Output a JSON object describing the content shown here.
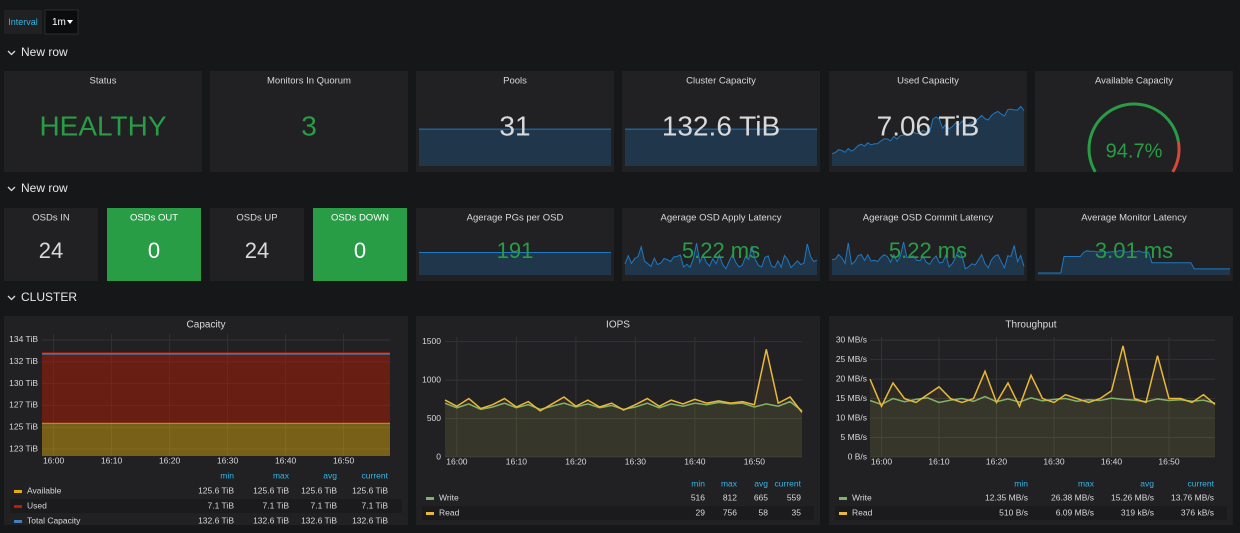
{
  "toolbar": {
    "interval_label": "Interval",
    "interval_value": "1m"
  },
  "rows": [
    "New row",
    "New row",
    "CLUSTER"
  ],
  "stats": [
    {
      "title": "Status",
      "value": "HEALTHY",
      "color": "#299c46"
    },
    {
      "title": "Monitors In Quorum",
      "value": "3",
      "color": "#299c46"
    },
    {
      "title": "Pools",
      "value": "31",
      "color": "#d8d9da"
    },
    {
      "title": "Cluster Capacity",
      "value": "132.6 TiB",
      "color": "#d8d9da"
    },
    {
      "title": "Used Capacity",
      "value": "7.06 TiB",
      "color": "#d8d9da"
    },
    {
      "title": "Available Capacity",
      "value": "94.7%",
      "color": "#299c46"
    },
    {
      "title": "OSDs IN",
      "value": "24",
      "color": "#d8d9da"
    },
    {
      "title": "OSDs OUT",
      "value": "0",
      "color": "#ffffff",
      "background": "#299c46"
    },
    {
      "title": "OSDs UP",
      "value": "24",
      "color": "#d8d9da"
    },
    {
      "title": "OSDs DOWN",
      "value": "0",
      "color": "#ffffff",
      "background": "#299c46"
    },
    {
      "title": "Agerage PGs per OSD",
      "value": "191",
      "color": "#299c46"
    },
    {
      "title": "Agerage OSD Apply Latency",
      "value": "5.22 ms",
      "color": "#299c46"
    },
    {
      "title": "Agerage OSD Commit Latency",
      "value": "5.22 ms",
      "color": "#299c46"
    },
    {
      "title": "Average Monitor Latency",
      "value": "3.01 ms",
      "color": "#299c46"
    }
  ],
  "chart_data": [
    {
      "type": "area",
      "title": "Capacity",
      "categories": [
        null,
        "16:00",
        null,
        null,
        null,
        null,
        "16:10",
        null,
        null,
        null,
        null,
        "16:20",
        null,
        null,
        null,
        null,
        "16:30",
        null,
        null,
        null,
        null,
        "16:40",
        null,
        null,
        null,
        null,
        "16:50",
        null,
        null,
        null,
        null
      ],
      "ylim": [
        122.3,
        134.6
      ],
      "yticks": [
        {
          "value": 123.0,
          "label": "123 TiB"
        },
        {
          "value": 125.2,
          "label": "125 TiB"
        },
        {
          "value": 127.4,
          "label": "127 TiB"
        },
        {
          "value": 129.6,
          "label": "130 TiB"
        },
        {
          "value": 131.8,
          "label": "132 TiB"
        },
        {
          "value": 134.0,
          "label": "134 TiB"
        }
      ],
      "grid": true,
      "legend_columns": [
        "min",
        "max",
        "avg",
        "current"
      ],
      "series": [
        {
          "name": "Available",
          "color": "#e5ac0e",
          "stack": true,
          "values": [
            125.6,
            125.6,
            125.6,
            125.6,
            125.6,
            125.6,
            125.6,
            125.6,
            125.6,
            125.6,
            125.6,
            125.6,
            125.6,
            125.6,
            125.6,
            125.6,
            125.6,
            125.6,
            125.6,
            125.6,
            125.6,
            125.6,
            125.6,
            125.6,
            125.6,
            125.6,
            125.6,
            125.6,
            125.6,
            125.6,
            125.6
          ],
          "legend": [
            "125.6 TiB",
            "125.6 TiB",
            "125.6 TiB",
            "125.6 TiB"
          ]
        },
        {
          "name": "Used",
          "color": "#bf1b00",
          "stack": true,
          "values": [
            7.1,
            7.1,
            7.1,
            7.1,
            7.1,
            7.1,
            7.1,
            7.1,
            7.1,
            7.1,
            7.1,
            7.1,
            7.1,
            7.1,
            7.1,
            7.1,
            7.1,
            7.1,
            7.1,
            7.1,
            7.1,
            7.1,
            7.1,
            7.1,
            7.1,
            7.1,
            7.1,
            7.1,
            7.1,
            7.1,
            7.1
          ],
          "legend": [
            "7.1 TiB",
            "7.1 TiB",
            "7.1 TiB",
            "7.1 TiB"
          ]
        },
        {
          "name": "Total Capacity",
          "color": "#447ebc",
          "stack": false,
          "values": [
            132.6,
            132.6,
            132.6,
            132.6,
            132.6,
            132.6,
            132.6,
            132.6,
            132.6,
            132.6,
            132.6,
            132.6,
            132.6,
            132.6,
            132.6,
            132.6,
            132.6,
            132.6,
            132.6,
            132.6,
            132.6,
            132.6,
            132.6,
            132.6,
            132.6,
            132.6,
            132.6,
            132.6,
            132.6,
            132.6,
            132.6
          ],
          "legend": [
            "132.6 TiB",
            "132.6 TiB",
            "132.6 TiB",
            "132.6 TiB"
          ]
        }
      ]
    },
    {
      "type": "line",
      "title": "IOPS",
      "fill": true,
      "categories": [
        null,
        "16:00",
        null,
        null,
        null,
        null,
        "16:10",
        null,
        null,
        null,
        null,
        "16:20",
        null,
        null,
        null,
        null,
        "16:30",
        null,
        null,
        null,
        null,
        "16:40",
        null,
        null,
        null,
        null,
        "16:50",
        null,
        null,
        null,
        null
      ],
      "ylim": [
        0,
        1560
      ],
      "yticks": [
        0,
        500,
        1000,
        1500
      ],
      "grid": true,
      "legend_columns": [
        "min",
        "max",
        "avg",
        "current"
      ],
      "series": [
        {
          "name": "Write",
          "color": "#7eb26d",
          "values": [
            700,
            640,
            690,
            620,
            650,
            700,
            640,
            680,
            620,
            660,
            700,
            650,
            690,
            640,
            670,
            620,
            650,
            700,
            640,
            690,
            660,
            700,
            680,
            710,
            690,
            700,
            650,
            690,
            660,
            720,
            600
          ],
          "legend": [
            "516",
            "812",
            "665",
            "559"
          ]
        },
        {
          "name": "Read",
          "color": "#eab839",
          "values": [
            740,
            660,
            760,
            630,
            680,
            760,
            650,
            720,
            600,
            690,
            780,
            660,
            740,
            650,
            700,
            610,
            680,
            760,
            660,
            740,
            690,
            750,
            700,
            730,
            700,
            720,
            680,
            1400,
            700,
            780,
            580
          ],
          "legend": [
            "29",
            "756",
            "58",
            "35"
          ]
        }
      ]
    },
    {
      "type": "line",
      "title": "Throughput",
      "fill": true,
      "categories": [
        null,
        "16:00",
        null,
        null,
        null,
        null,
        "16:10",
        null,
        null,
        null,
        null,
        "16:20",
        null,
        null,
        null,
        null,
        "16:30",
        null,
        null,
        null,
        null,
        "16:40",
        null,
        null,
        null,
        null,
        "16:50",
        null,
        null,
        null,
        null
      ],
      "ylim": [
        0,
        30.8
      ],
      "yticks": [
        {
          "value": 0,
          "label": "0 B/s"
        },
        {
          "value": 5,
          "label": "5 MB/s"
        },
        {
          "value": 10,
          "label": "10 MB/s"
        },
        {
          "value": 15,
          "label": "15 MB/s"
        },
        {
          "value": 20,
          "label": "20 MB/s"
        },
        {
          "value": 25,
          "label": "25 MB/s"
        },
        {
          "value": 30,
          "label": "30 MB/s"
        }
      ],
      "grid": true,
      "legend_columns": [
        "min",
        "max",
        "avg",
        "current"
      ],
      "series": [
        {
          "name": "Write",
          "color": "#7eb26d",
          "values": [
            14.5,
            13.5,
            15,
            14.2,
            14.8,
            15.2,
            14,
            14.6,
            15,
            14.3,
            15.5,
            14.2,
            14.9,
            14.1,
            15.2,
            14.4,
            14.8,
            15,
            14.3,
            14.7,
            14.5,
            15.1,
            14.8,
            14.6,
            14.2,
            14.9,
            14.5,
            14.7,
            14.3,
            14.6,
            13.8
          ],
          "legend": [
            "12.35 MB/s",
            "26.38 MB/s",
            "15.26 MB/s",
            "13.76 MB/s"
          ]
        },
        {
          "name": "Read",
          "color": "#eab839",
          "values": [
            20,
            13,
            19,
            15,
            14,
            16,
            18,
            15,
            14,
            15,
            22,
            14,
            19,
            13,
            21,
            15,
            14,
            16,
            15,
            14,
            15,
            17,
            28.5,
            15,
            14,
            26,
            15,
            15,
            14,
            16,
            13.5
          ],
          "legend": [
            "510 B/s",
            "6.09 MB/s",
            "319 kB/s",
            "376 kB/s"
          ]
        }
      ]
    }
  ]
}
